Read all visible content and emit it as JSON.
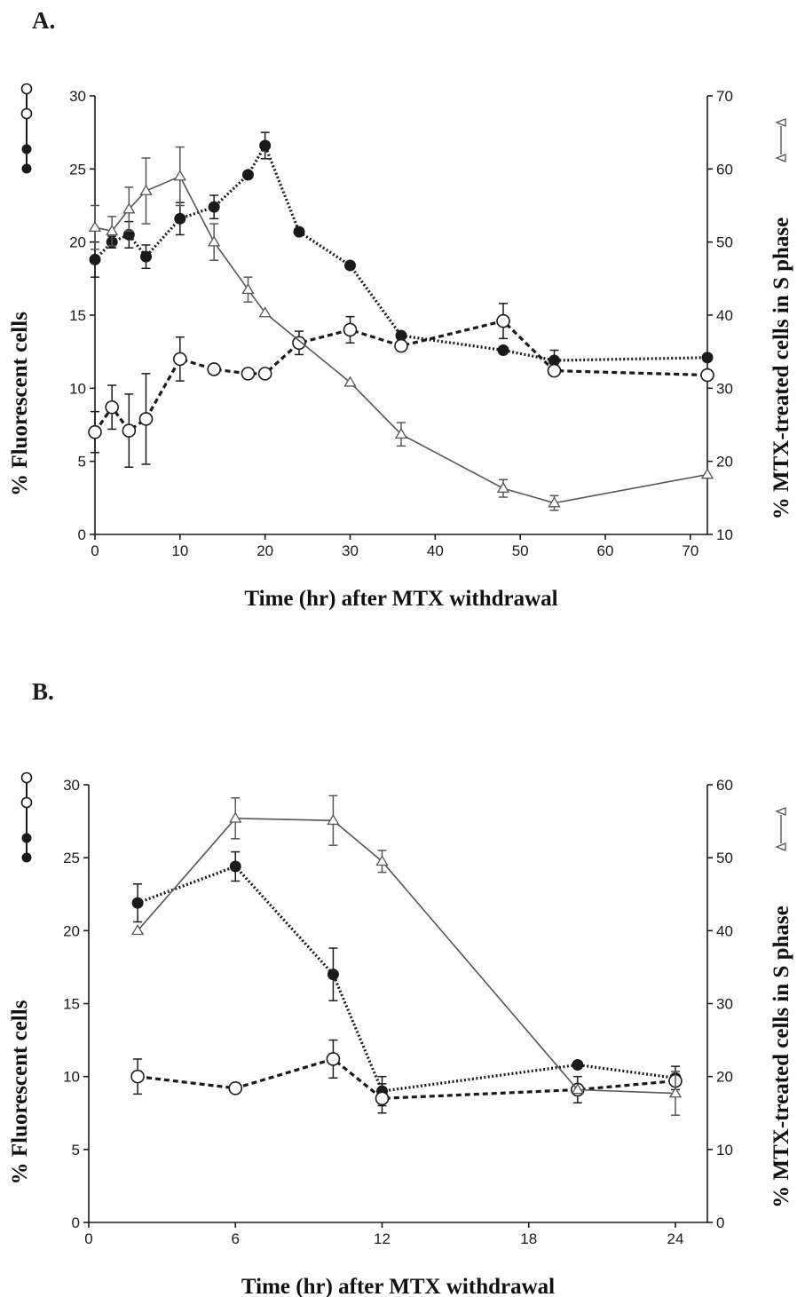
{
  "panels": [
    {
      "label": "A."
    },
    {
      "label": "B."
    }
  ],
  "colors": {
    "filled": "#1a1a1a",
    "open": "#1a1a1a",
    "triangle": "#555555"
  },
  "chart_data": [
    {
      "type": "line",
      "panel": "A.",
      "xlabel": "Time (hr) after MTX withdrawal",
      "ylabel": "% Fluorescent cells",
      "ylabel_right": "% MTX-treated cells in S phase",
      "xlim": [
        0,
        72
      ],
      "ylim": [
        0,
        30
      ],
      "ylim_right": [
        10,
        70
      ],
      "xticks": [
        0,
        10,
        20,
        30,
        40,
        50,
        60,
        70
      ],
      "yticks": [
        0,
        5,
        10,
        15,
        20,
        25,
        30
      ],
      "yticks_right": [
        10,
        20,
        30,
        40,
        50,
        60,
        70
      ],
      "series": [
        {
          "marker": "filled-circle",
          "axis": "left",
          "line": "dotted",
          "x": [
            0,
            2,
            4,
            6,
            10,
            14,
            18,
            20,
            24,
            30,
            36,
            48,
            54,
            72
          ],
          "y": [
            18.8,
            20.0,
            20.5,
            19.0,
            21.6,
            22.4,
            24.6,
            26.6,
            20.7,
            18.4,
            13.6,
            12.6,
            11.9,
            12.1
          ],
          "err": [
            1.2,
            0.4,
            0.9,
            0.8,
            1.1,
            0.8,
            0,
            0.9,
            0,
            0,
            0,
            0,
            0.7,
            0
          ]
        },
        {
          "marker": "open-circle",
          "axis": "left",
          "line": "dashed",
          "x": [
            0,
            2,
            4,
            6,
            10,
            14,
            18,
            20,
            24,
            30,
            36,
            48,
            54,
            72
          ],
          "y": [
            7.0,
            8.7,
            7.1,
            7.9,
            12.0,
            11.3,
            11.0,
            11.0,
            13.1,
            14.0,
            12.9,
            14.6,
            11.2,
            10.9
          ],
          "err": [
            1.4,
            1.5,
            2.5,
            3.1,
            1.5,
            0,
            0,
            0,
            0.8,
            0.9,
            0,
            1.2,
            0,
            0
          ]
        },
        {
          "marker": "open-triangle",
          "axis": "right",
          "line": "solid",
          "x": [
            0,
            2,
            4,
            6,
            10,
            14,
            18,
            20,
            30,
            36,
            48,
            54,
            72
          ],
          "y": [
            52,
            51.5,
            54.5,
            57,
            59,
            50,
            43.5,
            40.3,
            30.8,
            23.7,
            16.3,
            14.3,
            18.2
          ],
          "err": [
            3,
            2,
            3,
            4.5,
            4,
            2.5,
            1.7,
            0,
            0,
            1.6,
            1.2,
            1.0,
            0
          ]
        }
      ]
    },
    {
      "type": "line",
      "panel": "B.",
      "xlabel": "Time (hr) after MTX withdrawal",
      "ylabel": "% Fluorescent cells",
      "ylabel_right": "% MTX-treated cells in S phase",
      "xlim": [
        0,
        26
      ],
      "ylim": [
        0,
        30
      ],
      "ylim_right": [
        0,
        60
      ],
      "xticks": [
        0,
        6,
        12,
        18,
        24
      ],
      "yticks": [
        0,
        5,
        10,
        15,
        20,
        25,
        30
      ],
      "yticks_right": [
        0,
        10,
        20,
        30,
        40,
        50,
        60
      ],
      "series": [
        {
          "marker": "filled-circle",
          "axis": "left",
          "line": "dotted",
          "x": [
            2,
            6,
            10,
            12,
            20,
            24
          ],
          "y": [
            21.9,
            24.4,
            17.0,
            9.0,
            10.8,
            9.9
          ],
          "err": [
            1.3,
            1.0,
            1.8,
            1.0,
            0,
            0.8
          ]
        },
        {
          "marker": "open-circle",
          "axis": "left",
          "line": "dashed",
          "x": [
            2,
            6,
            10,
            12,
            20,
            24
          ],
          "y": [
            10.0,
            9.2,
            11.2,
            8.5,
            9.1,
            9.7
          ],
          "err": [
            1.2,
            0,
            1.3,
            1.0,
            0.9,
            0
          ]
        },
        {
          "marker": "open-triangle",
          "axis": "right",
          "line": "solid",
          "x": [
            2,
            6,
            10,
            12,
            20,
            24
          ],
          "y": [
            40,
            55.4,
            55.1,
            49.5,
            18.2,
            17.7
          ],
          "err": [
            0,
            2.8,
            3.4,
            1.5,
            0,
            3.0
          ]
        }
      ]
    }
  ]
}
